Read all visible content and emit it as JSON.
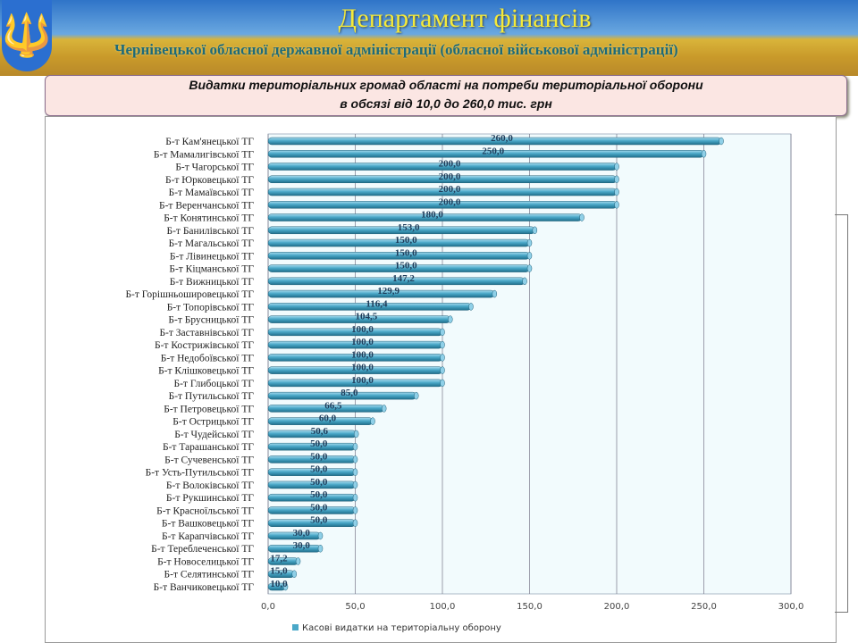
{
  "header": {
    "title": "Департамент фінансів",
    "subtitle": "Чернівецької обласної державної адміністрації (обласної військової адміністрації)",
    "emblem": "trident-icon"
  },
  "slide_title": {
    "line1": "Видатки територіальних громад області на потреби територіальної оборони",
    "line2": "в обсязі від 10,0 до 260,0 тис. грн"
  },
  "chart_data": {
    "type": "bar",
    "orientation": "horizontal",
    "style": "3d-cylinder",
    "categories": [
      "Б-т Кам'янецької ТГ",
      "Б-т Мамалигівської ТГ",
      "Б-т Чагорської ТГ",
      "Б-т Юрковецької ТГ",
      "Б-т Мамаївської ТГ",
      "Б-т Веренчанської ТГ",
      "Б-т Конятинської ТГ",
      "Б-т Банилівської ТГ",
      "Б-т Магальської ТГ",
      "Б-т Лівинецької ТГ",
      "Б-т Кіцманської ТГ",
      "Б-т Вижницької ТГ",
      "Б-т Горішньошировецької  ТГ",
      "Б-т Топорівської ТГ",
      "Б-т Брусницької ТГ",
      "Б-т Заставнівської ТГ",
      "Б-т Кострижівської ТГ",
      "Б-т Недобоївської ТГ",
      "Б-т Клішковецької ТГ",
      "Б-т Глибоцької ТГ",
      "Б-т Путильської ТГ",
      "Б-т Петровецької ТГ",
      "Б-т Острицької ТГ",
      "Б-т Чудейської ТГ",
      "Б-т Тарашанської ТГ",
      "Б-т Сучевенської ТГ",
      "Б-т Усть-Путильської ТГ",
      "Б-т Волоківської ТГ",
      "Б-т Рукшинської ТГ",
      "Б-т Красноїльської ТГ",
      "Б-т Вашковецької ТГ",
      "Б-т Карапчівської ТГ",
      "Б-т Тереблеченської ТГ",
      "Б-т Новоселицької ТГ",
      "Б-т Селятинської ТГ",
      "Б-т Ванчиковецької ТГ"
    ],
    "series": [
      {
        "name": "Касові видатки на територіальну оборону",
        "color": "#4aa8c8",
        "values": [
          260.0,
          250.0,
          200.0,
          200.0,
          200.0,
          200.0,
          180.0,
          153.0,
          150.0,
          150.0,
          150.0,
          147.2,
          129.9,
          116.4,
          104.5,
          100.0,
          100.0,
          100.0,
          100.0,
          100.0,
          85.0,
          66.5,
          60.0,
          50.6,
          50.0,
          50.0,
          50.0,
          50.0,
          50.0,
          50.0,
          50.0,
          30.0,
          30.0,
          17.2,
          15.0,
          10.0
        ]
      }
    ],
    "data_labels": [
      "260,0",
      "250,0",
      "200,0",
      "200,0",
      "200,0",
      "200,0",
      "180,0",
      "153,0",
      "150,0",
      "150,0",
      "150,0",
      "147,2",
      "129,9",
      "116,4",
      "104,5",
      "100,0",
      "100,0",
      "100,0",
      "100,0",
      "100,0",
      "85,0",
      "66,5",
      "60,0",
      "50,6",
      "50,0",
      "50,0",
      "50,0",
      "50,0",
      "50,0",
      "50,0",
      "50,0",
      "30,0",
      "30,0",
      "17,2",
      "15,0",
      "10,0"
    ],
    "xlim": [
      0,
      300
    ],
    "x_ticks": [
      "0,0",
      "50,0",
      "100,0",
      "150,0",
      "200,0",
      "250,0",
      "300,0"
    ],
    "grid": "vertical",
    "legend": "bottom"
  }
}
